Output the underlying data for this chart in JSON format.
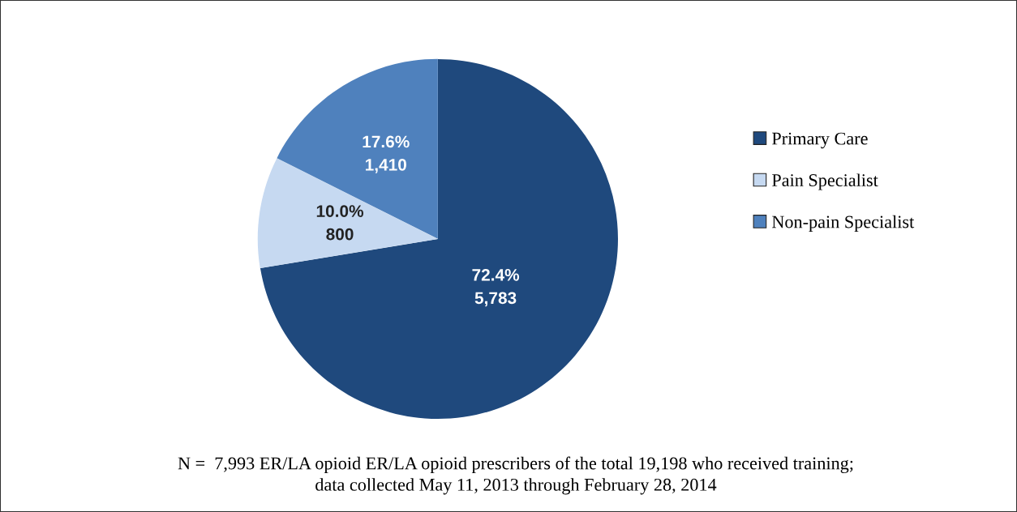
{
  "chart_data": {
    "type": "pie",
    "categories": [
      "Primary Care",
      "Pain Specialist",
      "Non-pain Specialist"
    ],
    "values": [
      72.4,
      10.0,
      17.6
    ],
    "value_labels": [
      "72.4%\n5,783",
      "10.0%\n800",
      "17.6%\n1,410"
    ],
    "colors": [
      "#1f497d",
      "#c6d9f1",
      "#4f81bd"
    ],
    "legend": "right",
    "annotations": [
      "N =  7,993 ER/LA opioid ER/LA opioid prescribers of the total 19,198 who received training;\ndata collected May 11, 2013 through February 28, 2014"
    ]
  }
}
